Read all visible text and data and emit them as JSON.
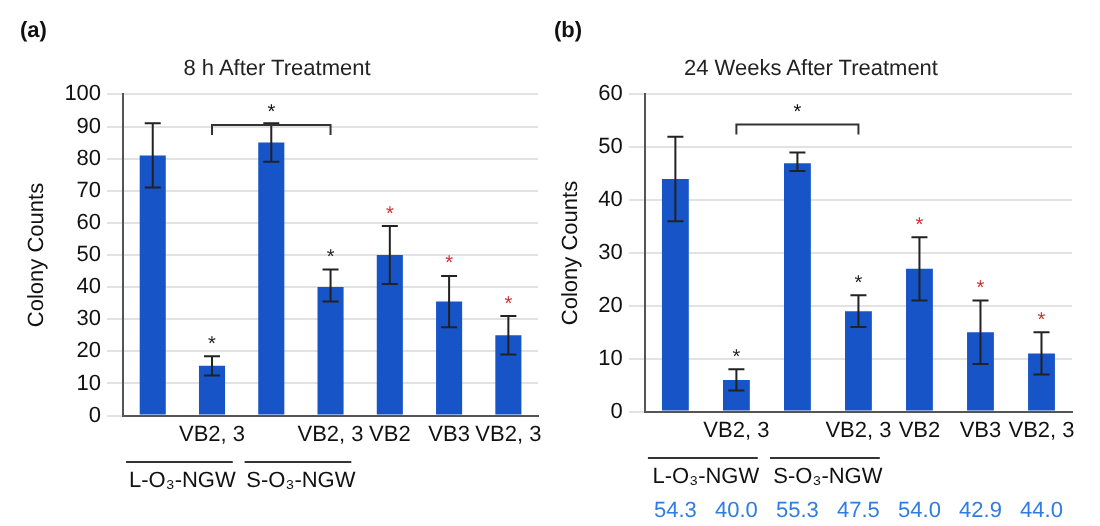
{
  "chart_data": [
    {
      "type": "bar",
      "title": "8 h After Treatment",
      "ylabel": "Colony Counts",
      "categories": [
        null,
        "VB2, 3",
        null,
        "VB2, 3",
        "VB2",
        "VB3",
        "VB2, 3"
      ],
      "color": "#1654c8",
      "values": [
        81,
        15.5,
        85,
        40,
        50,
        35.5,
        25
      ],
      "errors": [
        [
          71,
          91
        ],
        [
          12.5,
          18.5
        ],
        [
          79,
          91
        ],
        [
          35.5,
          45.5
        ],
        [
          41,
          59
        ],
        [
          27.5,
          43.5
        ],
        [
          19,
          31
        ]
      ],
      "value_labels": [
        null,
        "*",
        null,
        "*",
        "*",
        "*",
        "*"
      ],
      "ylim": [
        0,
        100
      ],
      "yticks": [
        0,
        10,
        20,
        30,
        40,
        50,
        60,
        70,
        80,
        90,
        100
      ],
      "grid": "y",
      "annotations": [
        "(a)",
        "*",
        "L-O₃-NGW",
        "S-O₃-NGW"
      ]
    },
    {
      "type": "bar",
      "title": "24 Weeks After Treatment",
      "ylabel": "Colony Counts",
      "categories": [
        null,
        "VB2, 3",
        null,
        "VB2, 3",
        "VB2",
        "VB3",
        "VB2, 3"
      ],
      "color": "#1654c8",
      "values": [
        44,
        6,
        47,
        19,
        27,
        15,
        11
      ],
      "errors": [
        [
          36,
          52
        ],
        [
          4,
          8
        ],
        [
          45.5,
          49
        ],
        [
          16,
          22
        ],
        [
          21,
          33
        ],
        [
          9,
          21
        ],
        [
          7,
          15
        ]
      ],
      "value_labels": [
        null,
        "*",
        null,
        "*",
        "*",
        "*",
        "*"
      ],
      "ylim": [
        0,
        60
      ],
      "yticks": [
        0,
        10,
        20,
        30,
        40,
        50,
        60
      ],
      "grid": "y",
      "annotations": [
        "(b)",
        "*",
        "L-O₃-NGW",
        "S-O₃-NGW",
        "54.3",
        "40.0",
        "55.3",
        "47.5",
        "54.0",
        "42.9",
        "44.0"
      ]
    }
  ]
}
